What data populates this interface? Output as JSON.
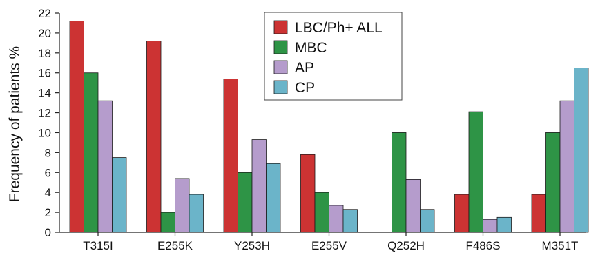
{
  "chart_data": {
    "type": "bar",
    "title": "",
    "xlabel": "",
    "ylabel": "Frequency of patients %",
    "ylim": [
      0,
      22
    ],
    "yticks": [
      0,
      2,
      4,
      6,
      8,
      10,
      12,
      14,
      16,
      18,
      20,
      22
    ],
    "grid": false,
    "legend_position": "top-center",
    "categories": [
      "T315I",
      "E255K",
      "Y253H",
      "E255V",
      "Q252H",
      "F486S",
      "M351T"
    ],
    "series": [
      {
        "name": "LBC/Ph+ ALL",
        "color": "#cc3333",
        "values": [
          21.2,
          19.2,
          15.4,
          7.8,
          0,
          3.8,
          3.8
        ]
      },
      {
        "name": "MBC",
        "color": "#2e9446",
        "values": [
          16.0,
          2.0,
          6.0,
          4.0,
          10.0,
          12.1,
          10.0
        ]
      },
      {
        "name": "AP",
        "color": "#b59ccc",
        "values": [
          13.2,
          5.4,
          9.3,
          2.7,
          5.3,
          1.3,
          13.2
        ]
      },
      {
        "name": "CP",
        "color": "#6bb4c9",
        "values": [
          7.5,
          3.8,
          6.9,
          2.3,
          2.3,
          1.5,
          16.5
        ]
      }
    ]
  }
}
